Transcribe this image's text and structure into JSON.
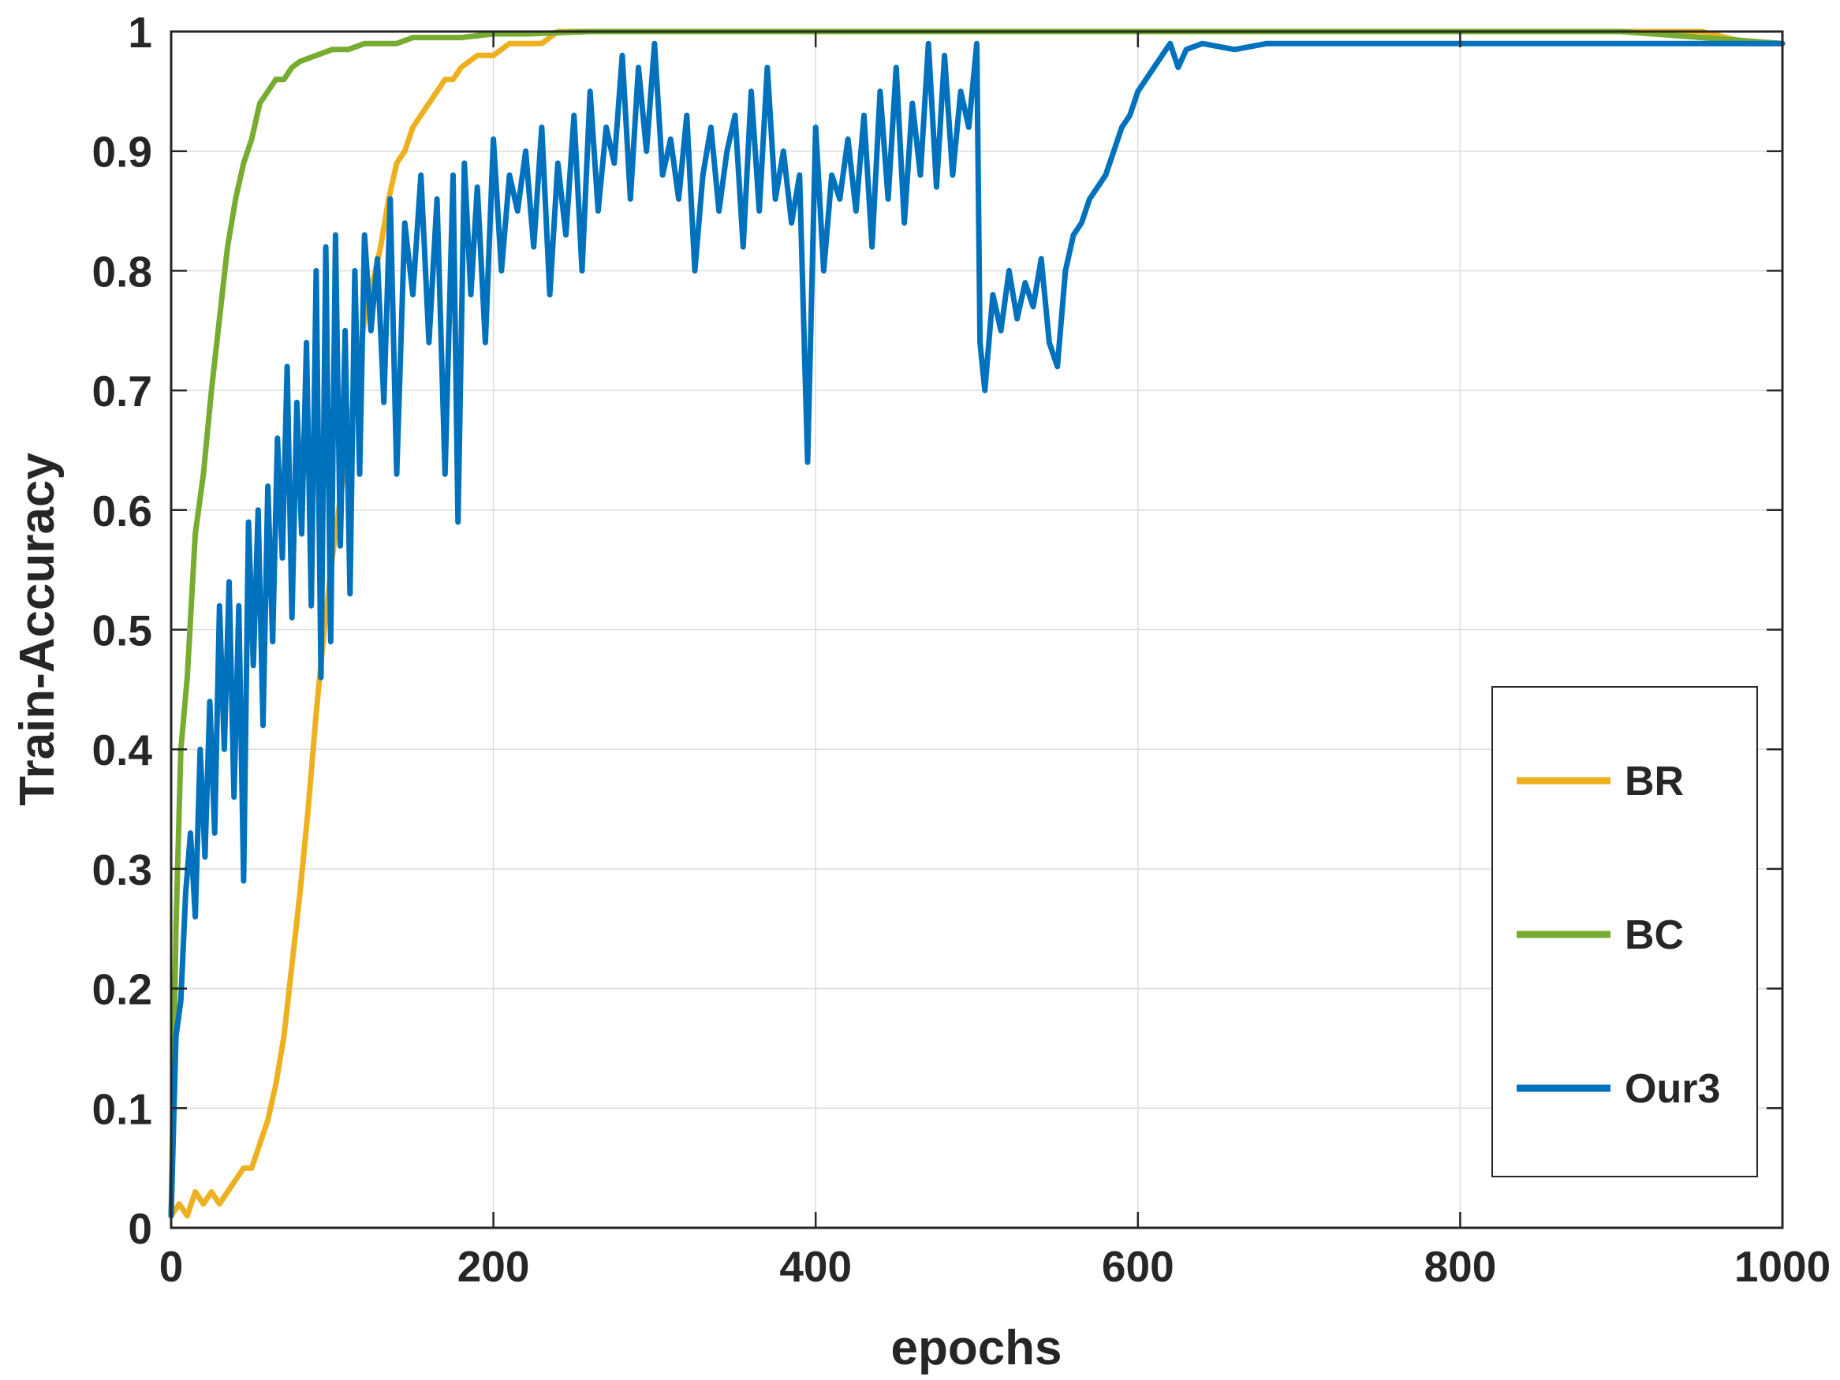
{
  "chart_data": {
    "type": "line",
    "title": "",
    "xlabel": "epochs",
    "ylabel": "Train-Accuracy",
    "xlim": [
      0,
      1000
    ],
    "ylim": [
      0,
      1
    ],
    "xticks": [
      0,
      200,
      400,
      600,
      800,
      1000
    ],
    "yticks": [
      0,
      0.1,
      0.2,
      0.3,
      0.4,
      0.5,
      0.6,
      0.7,
      0.8,
      0.9,
      1
    ],
    "xtick_labels": [
      "0",
      "200",
      "400",
      "600",
      "800",
      "1000"
    ],
    "ytick_labels": [
      "0",
      "0.1",
      "0.2",
      "0.3",
      "0.4",
      "0.5",
      "0.6",
      "0.7",
      "0.8",
      "0.9",
      "1"
    ],
    "grid": true,
    "legend_position": "lower-right",
    "series": [
      {
        "name": "BR",
        "color": "#EDB120",
        "x": [
          0,
          5,
          10,
          15,
          20,
          25,
          30,
          35,
          40,
          45,
          50,
          55,
          60,
          65,
          70,
          75,
          80,
          85,
          90,
          95,
          100,
          105,
          110,
          115,
          120,
          125,
          130,
          135,
          140,
          145,
          150,
          155,
          160,
          165,
          170,
          175,
          180,
          190,
          200,
          210,
          220,
          230,
          240,
          250,
          260,
          270,
          280,
          300,
          400,
          500,
          600,
          700,
          800,
          900,
          950,
          980,
          990,
          1000
        ],
        "y": [
          0.01,
          0.02,
          0.01,
          0.03,
          0.02,
          0.03,
          0.02,
          0.03,
          0.04,
          0.05,
          0.05,
          0.07,
          0.09,
          0.12,
          0.16,
          0.22,
          0.28,
          0.35,
          0.43,
          0.5,
          0.56,
          0.61,
          0.66,
          0.71,
          0.76,
          0.79,
          0.82,
          0.86,
          0.89,
          0.9,
          0.92,
          0.93,
          0.94,
          0.95,
          0.96,
          0.96,
          0.97,
          0.98,
          0.98,
          0.99,
          0.99,
          0.99,
          1.0,
          1.0,
          1.0,
          1.0,
          1.0,
          1.0,
          1.0,
          1.0,
          1.0,
          1.0,
          1.0,
          1.0,
          1.0,
          0.99,
          0.99,
          0.99
        ]
      },
      {
        "name": "BC",
        "color": "#77AC30",
        "x": [
          0,
          3,
          6,
          10,
          15,
          20,
          25,
          30,
          35,
          40,
          45,
          50,
          55,
          60,
          65,
          70,
          75,
          80,
          90,
          100,
          110,
          120,
          130,
          140,
          150,
          160,
          180,
          200,
          220,
          240,
          260,
          280,
          300,
          400,
          500,
          600,
          700,
          800,
          900,
          1000
        ],
        "y": [
          0.01,
          0.25,
          0.4,
          0.46,
          0.58,
          0.63,
          0.7,
          0.76,
          0.82,
          0.86,
          0.89,
          0.91,
          0.94,
          0.95,
          0.96,
          0.96,
          0.97,
          0.975,
          0.98,
          0.985,
          0.985,
          0.99,
          0.99,
          0.99,
          0.995,
          0.995,
          0.995,
          0.998,
          0.998,
          0.999,
          1.0,
          1.0,
          1.0,
          1.0,
          1.0,
          1.0,
          1.0,
          1.0,
          1.0,
          0.99
        ]
      },
      {
        "name": "Our3",
        "color": "#0072BD",
        "x": [
          0,
          3,
          6,
          9,
          12,
          15,
          18,
          21,
          24,
          27,
          30,
          33,
          36,
          39,
          42,
          45,
          48,
          51,
          54,
          57,
          60,
          63,
          66,
          69,
          72,
          75,
          78,
          81,
          84,
          87,
          90,
          93,
          96,
          99,
          102,
          105,
          108,
          111,
          114,
          117,
          120,
          124,
          128,
          132,
          136,
          140,
          145,
          150,
          155,
          160,
          165,
          170,
          175,
          178,
          182,
          186,
          190,
          195,
          200,
          205,
          210,
          215,
          220,
          225,
          230,
          235,
          240,
          245,
          250,
          255,
          260,
          265,
          270,
          275,
          280,
          285,
          290,
          295,
          300,
          305,
          310,
          315,
          320,
          325,
          330,
          335,
          340,
          345,
          350,
          355,
          360,
          365,
          370,
          375,
          380,
          385,
          390,
          395,
          400,
          405,
          410,
          415,
          420,
          425,
          430,
          435,
          440,
          445,
          450,
          455,
          460,
          465,
          470,
          475,
          480,
          485,
          490,
          495,
          500,
          502,
          505,
          510,
          515,
          520,
          525,
          530,
          535,
          540,
          545,
          550,
          555,
          560,
          565,
          570,
          575,
          580,
          585,
          590,
          595,
          600,
          605,
          610,
          615,
          620,
          625,
          630,
          640,
          660,
          680,
          700,
          750,
          800,
          850,
          900,
          950,
          1000
        ],
        "y": [
          0.01,
          0.16,
          0.19,
          0.28,
          0.33,
          0.26,
          0.4,
          0.31,
          0.44,
          0.33,
          0.52,
          0.4,
          0.54,
          0.36,
          0.52,
          0.29,
          0.59,
          0.47,
          0.6,
          0.42,
          0.62,
          0.49,
          0.66,
          0.56,
          0.72,
          0.51,
          0.69,
          0.58,
          0.74,
          0.52,
          0.8,
          0.46,
          0.82,
          0.49,
          0.83,
          0.57,
          0.75,
          0.53,
          0.8,
          0.63,
          0.83,
          0.75,
          0.81,
          0.69,
          0.86,
          0.63,
          0.84,
          0.78,
          0.88,
          0.74,
          0.86,
          0.63,
          0.88,
          0.59,
          0.89,
          0.78,
          0.87,
          0.74,
          0.91,
          0.8,
          0.88,
          0.85,
          0.9,
          0.82,
          0.92,
          0.78,
          0.89,
          0.83,
          0.93,
          0.8,
          0.95,
          0.85,
          0.92,
          0.89,
          0.98,
          0.86,
          0.97,
          0.9,
          0.99,
          0.88,
          0.91,
          0.86,
          0.93,
          0.8,
          0.88,
          0.92,
          0.85,
          0.9,
          0.93,
          0.82,
          0.95,
          0.85,
          0.97,
          0.86,
          0.9,
          0.84,
          0.88,
          0.64,
          0.92,
          0.8,
          0.88,
          0.86,
          0.91,
          0.85,
          0.93,
          0.82,
          0.95,
          0.86,
          0.97,
          0.84,
          0.94,
          0.88,
          0.99,
          0.87,
          0.98,
          0.88,
          0.95,
          0.92,
          0.99,
          0.74,
          0.7,
          0.78,
          0.75,
          0.8,
          0.76,
          0.79,
          0.77,
          0.81,
          0.74,
          0.72,
          0.8,
          0.83,
          0.84,
          0.86,
          0.87,
          0.88,
          0.9,
          0.92,
          0.93,
          0.95,
          0.96,
          0.97,
          0.98,
          0.99,
          0.97,
          0.985,
          0.99,
          0.985,
          0.99,
          0.99,
          0.99,
          0.99,
          0.99,
          0.99,
          0.99,
          0.99
        ]
      }
    ]
  }
}
